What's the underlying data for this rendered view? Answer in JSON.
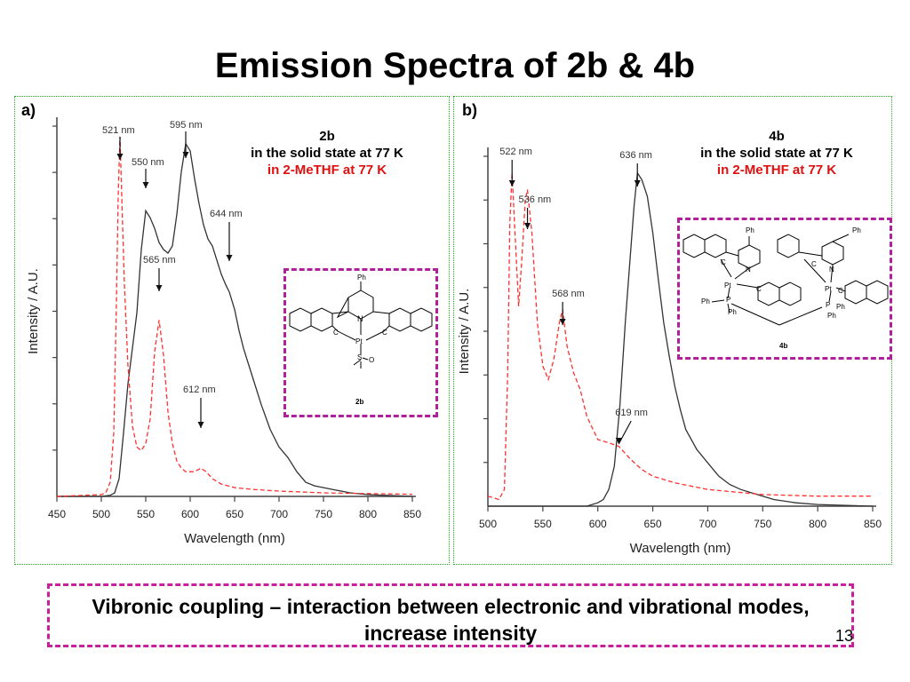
{
  "slide": {
    "title": "Emission Spectra of 2b & 4b",
    "footer_text": "Vibronic coupling – interaction between electronic and vibrational modes, increase intensity",
    "page_number": "13"
  },
  "colors": {
    "solid": "#333333",
    "solution": "#ff3030",
    "inset_border": "#b0209a"
  },
  "panels": [
    {
      "letter": "a)",
      "compound": "2b",
      "legend_solid": "in the solid state at 77 K",
      "legend_solution": "in 2-MeTHF at 77 K",
      "inset_caption": "2b"
    },
    {
      "letter": "b)",
      "compound": "4b",
      "legend_solid": "in the solid state at 77 K",
      "legend_solution": "in 2-MeTHF at 77 K",
      "inset_caption": "4b"
    }
  ],
  "chart_data": [
    {
      "type": "line",
      "xlabel": "Wavelength (nm)",
      "ylabel": "Intensity / A.U.",
      "xlim": [
        450,
        850
      ],
      "xticks": [
        450,
        500,
        550,
        600,
        650,
        700,
        750,
        800,
        850
      ],
      "ylim": [
        0,
        1.05
      ],
      "grid": false,
      "series": [
        {
          "name": "in the solid state at 77 K",
          "style": "solid",
          "points": [
            [
              450,
              0.0
            ],
            [
              500,
              0.0
            ],
            [
              510,
              0.003
            ],
            [
              515,
              0.01
            ],
            [
              520,
              0.05
            ],
            [
              525,
              0.18
            ],
            [
              530,
              0.32
            ],
            [
              535,
              0.42
            ],
            [
              540,
              0.52
            ],
            [
              545,
              0.7
            ],
            [
              550,
              0.81
            ],
            [
              555,
              0.79
            ],
            [
              560,
              0.76
            ],
            [
              565,
              0.72
            ],
            [
              570,
              0.7
            ],
            [
              575,
              0.69
            ],
            [
              580,
              0.71
            ],
            [
              585,
              0.8
            ],
            [
              590,
              0.92
            ],
            [
              595,
              1.0
            ],
            [
              600,
              0.98
            ],
            [
              605,
              0.9
            ],
            [
              610,
              0.83
            ],
            [
              615,
              0.77
            ],
            [
              620,
              0.73
            ],
            [
              625,
              0.71
            ],
            [
              630,
              0.67
            ],
            [
              635,
              0.63
            ],
            [
              640,
              0.6
            ],
            [
              644,
              0.58
            ],
            [
              650,
              0.53
            ],
            [
              655,
              0.47
            ],
            [
              660,
              0.42
            ],
            [
              670,
              0.34
            ],
            [
              680,
              0.26
            ],
            [
              690,
              0.19
            ],
            [
              700,
              0.14
            ],
            [
              710,
              0.11
            ],
            [
              720,
              0.07
            ],
            [
              730,
              0.04
            ],
            [
              740,
              0.03
            ],
            [
              750,
              0.025
            ],
            [
              760,
              0.02
            ],
            [
              780,
              0.01
            ],
            [
              800,
              0.005
            ],
            [
              850,
              0.0
            ]
          ]
        },
        {
          "name": "in 2-MeTHF at 77 K",
          "style": "dashed",
          "points": [
            [
              450,
              0.0
            ],
            [
              500,
              0.005
            ],
            [
              505,
              0.01
            ],
            [
              510,
              0.04
            ],
            [
              514,
              0.18
            ],
            [
              517,
              0.55
            ],
            [
              519,
              0.85
            ],
            [
              521,
              1.02
            ],
            [
              523,
              0.85
            ],
            [
              526,
              0.6
            ],
            [
              530,
              0.37
            ],
            [
              535,
              0.2
            ],
            [
              540,
              0.14
            ],
            [
              545,
              0.13
            ],
            [
              550,
              0.15
            ],
            [
              555,
              0.22
            ],
            [
              560,
              0.41
            ],
            [
              565,
              0.5
            ],
            [
              570,
              0.4
            ],
            [
              575,
              0.24
            ],
            [
              580,
              0.15
            ],
            [
              585,
              0.1
            ],
            [
              590,
              0.08
            ],
            [
              595,
              0.07
            ],
            [
              600,
              0.07
            ],
            [
              605,
              0.07
            ],
            [
              612,
              0.08
            ],
            [
              618,
              0.07
            ],
            [
              625,
              0.05
            ],
            [
              635,
              0.035
            ],
            [
              650,
              0.025
            ],
            [
              670,
              0.02
            ],
            [
              700,
              0.015
            ],
            [
              750,
              0.01
            ],
            [
              800,
              0.008
            ],
            [
              850,
              0.006
            ]
          ]
        }
      ],
      "annotations": [
        "521 nm",
        "550 nm",
        "595 nm",
        "644 nm",
        "565 nm",
        "612 nm"
      ]
    },
    {
      "type": "line",
      "xlabel": "Wavelength (nm)",
      "ylabel": "Intensity / A.U.",
      "xlim": [
        500,
        850
      ],
      "xticks": [
        500,
        550,
        600,
        650,
        700,
        750,
        800,
        850
      ],
      "ylim": [
        0,
        1.05
      ],
      "grid": false,
      "series": [
        {
          "name": "in the solid state at 77 K",
          "style": "solid",
          "points": [
            [
              500,
              0.0
            ],
            [
              590,
              0.0
            ],
            [
              600,
              0.01
            ],
            [
              605,
              0.02
            ],
            [
              610,
              0.05
            ],
            [
              615,
              0.12
            ],
            [
              620,
              0.3
            ],
            [
              625,
              0.55
            ],
            [
              630,
              0.77
            ],
            [
              633,
              0.9
            ],
            [
              636,
              1.0
            ],
            [
              640,
              0.98
            ],
            [
              645,
              0.93
            ],
            [
              650,
              0.82
            ],
            [
              655,
              0.68
            ],
            [
              660,
              0.55
            ],
            [
              665,
              0.45
            ],
            [
              670,
              0.36
            ],
            [
              675,
              0.29
            ],
            [
              680,
              0.23
            ],
            [
              690,
              0.17
            ],
            [
              700,
              0.13
            ],
            [
              710,
              0.09
            ],
            [
              720,
              0.065
            ],
            [
              730,
              0.05
            ],
            [
              740,
              0.04
            ],
            [
              750,
              0.03
            ],
            [
              760,
              0.02
            ],
            [
              780,
              0.01
            ],
            [
              800,
              0.005
            ],
            [
              850,
              0.0
            ]
          ]
        },
        {
          "name": "in 2-MeTHF at 77 K",
          "style": "dashed",
          "points": [
            [
              500,
              0.03
            ],
            [
              510,
              0.02
            ],
            [
              515,
              0.05
            ],
            [
              518,
              0.4
            ],
            [
              520,
              0.85
            ],
            [
              522,
              1.0
            ],
            [
              525,
              0.8
            ],
            [
              528,
              0.6
            ],
            [
              531,
              0.75
            ],
            [
              534,
              0.92
            ],
            [
              536,
              0.95
            ],
            [
              540,
              0.82
            ],
            [
              545,
              0.55
            ],
            [
              550,
              0.42
            ],
            [
              555,
              0.38
            ],
            [
              560,
              0.44
            ],
            [
              565,
              0.55
            ],
            [
              568,
              0.59
            ],
            [
              572,
              0.48
            ],
            [
              578,
              0.4
            ],
            [
              584,
              0.35
            ],
            [
              590,
              0.27
            ],
            [
              600,
              0.2
            ],
            [
              610,
              0.19
            ],
            [
              619,
              0.18
            ],
            [
              630,
              0.14
            ],
            [
              640,
              0.11
            ],
            [
              650,
              0.09
            ],
            [
              670,
              0.07
            ],
            [
              700,
              0.05
            ],
            [
              750,
              0.035
            ],
            [
              800,
              0.03
            ],
            [
              850,
              0.03
            ]
          ]
        }
      ],
      "annotations": [
        "522 nm",
        "536 nm",
        "568 nm",
        "619 nm",
        "636 nm"
      ]
    }
  ],
  "structure_labels": {
    "ph": "Ph",
    "n": "N",
    "pt": "Pt",
    "c": "C",
    "s": "S",
    "o": "O",
    "p": "P"
  }
}
